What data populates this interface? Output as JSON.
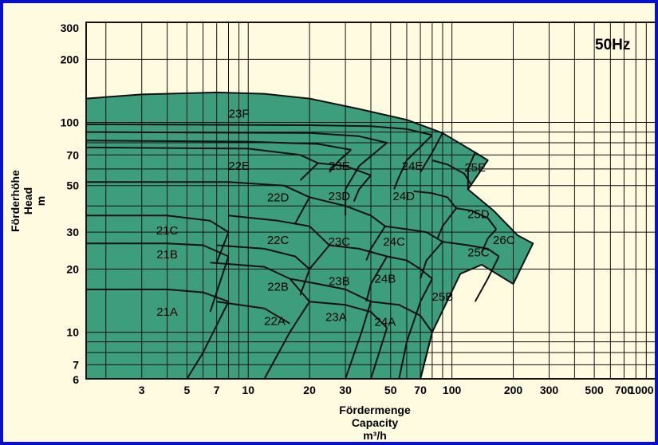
{
  "chart_data": {
    "type": "area",
    "title": "50Hz",
    "xlabel": [
      "Fördermenge",
      "Capacity",
      "m³/h"
    ],
    "ylabel": [
      "Förderhöhe",
      "Head",
      "m"
    ],
    "x_scale": "log",
    "y_scale": "log",
    "xlim": [
      1.6,
      1000
    ],
    "ylim": [
      6,
      300
    ],
    "x_ticks": [
      3,
      5,
      7,
      10,
      20,
      30,
      50,
      70,
      100,
      200,
      300,
      500,
      700,
      1000
    ],
    "x_tick_labels": [
      "3",
      "5",
      "7",
      "10",
      "20",
      "30",
      "50",
      "70",
      "100",
      "200",
      "300",
      "500",
      "700",
      "1000"
    ],
    "y_ticks": [
      6,
      7,
      10,
      20,
      30,
      50,
      70,
      100,
      200,
      300
    ],
    "y_tick_labels": [
      "6",
      "7",
      "10",
      "20",
      "30",
      "50",
      "70",
      "100",
      "200",
      "300"
    ],
    "grid": true,
    "fill_color": "#3d9e7e",
    "edge_color": "#111111",
    "background_color": "#fffbe0",
    "regions": [
      {
        "label": "21A",
        "label_x": 4.0,
        "label_y": 12.5
      },
      {
        "label": "21B",
        "label_x": 4.0,
        "label_y": 23.5
      },
      {
        "label": "21C",
        "label_x": 4.0,
        "label_y": 30.5
      },
      {
        "label": "22A",
        "label_x": 13.5,
        "label_y": 11.3
      },
      {
        "label": "22B",
        "label_x": 14.0,
        "label_y": 16.5
      },
      {
        "label": "22C",
        "label_x": 14.0,
        "label_y": 27.5
      },
      {
        "label": "22D",
        "label_x": 14.0,
        "label_y": 44
      },
      {
        "label": "22E",
        "label_x": 9.0,
        "label_y": 62
      },
      {
        "label": "23A",
        "label_x": 27.0,
        "label_y": 11.8
      },
      {
        "label": "23B",
        "label_x": 28.0,
        "label_y": 17.5
      },
      {
        "label": "23C",
        "label_x": 28.0,
        "label_y": 27
      },
      {
        "label": "23D",
        "label_x": 28.0,
        "label_y": 44.5
      },
      {
        "label": "23E",
        "label_x": 28.0,
        "label_y": 62
      },
      {
        "label": "23F",
        "label_x": 9.0,
        "label_y": 110
      },
      {
        "label": "24A",
        "label_x": 47.0,
        "label_y": 11.2
      },
      {
        "label": "24B",
        "label_x": 47.0,
        "label_y": 18
      },
      {
        "label": "24C",
        "label_x": 52.0,
        "label_y": 27
      },
      {
        "label": "24D",
        "label_x": 58.0,
        "label_y": 44.5
      },
      {
        "label": "24E",
        "label_x": 64.0,
        "label_y": 62
      },
      {
        "label": "25B",
        "label_x": 90.0,
        "label_y": 14.8
      },
      {
        "label": "25C",
        "label_x": 135.0,
        "label_y": 24
      },
      {
        "label": "25D",
        "label_x": 135.0,
        "label_y": 36.5
      },
      {
        "label": "25E",
        "label_x": 130.0,
        "label_y": 61
      },
      {
        "label": "26C",
        "label_x": 180.0,
        "label_y": 27.5
      }
    ]
  }
}
